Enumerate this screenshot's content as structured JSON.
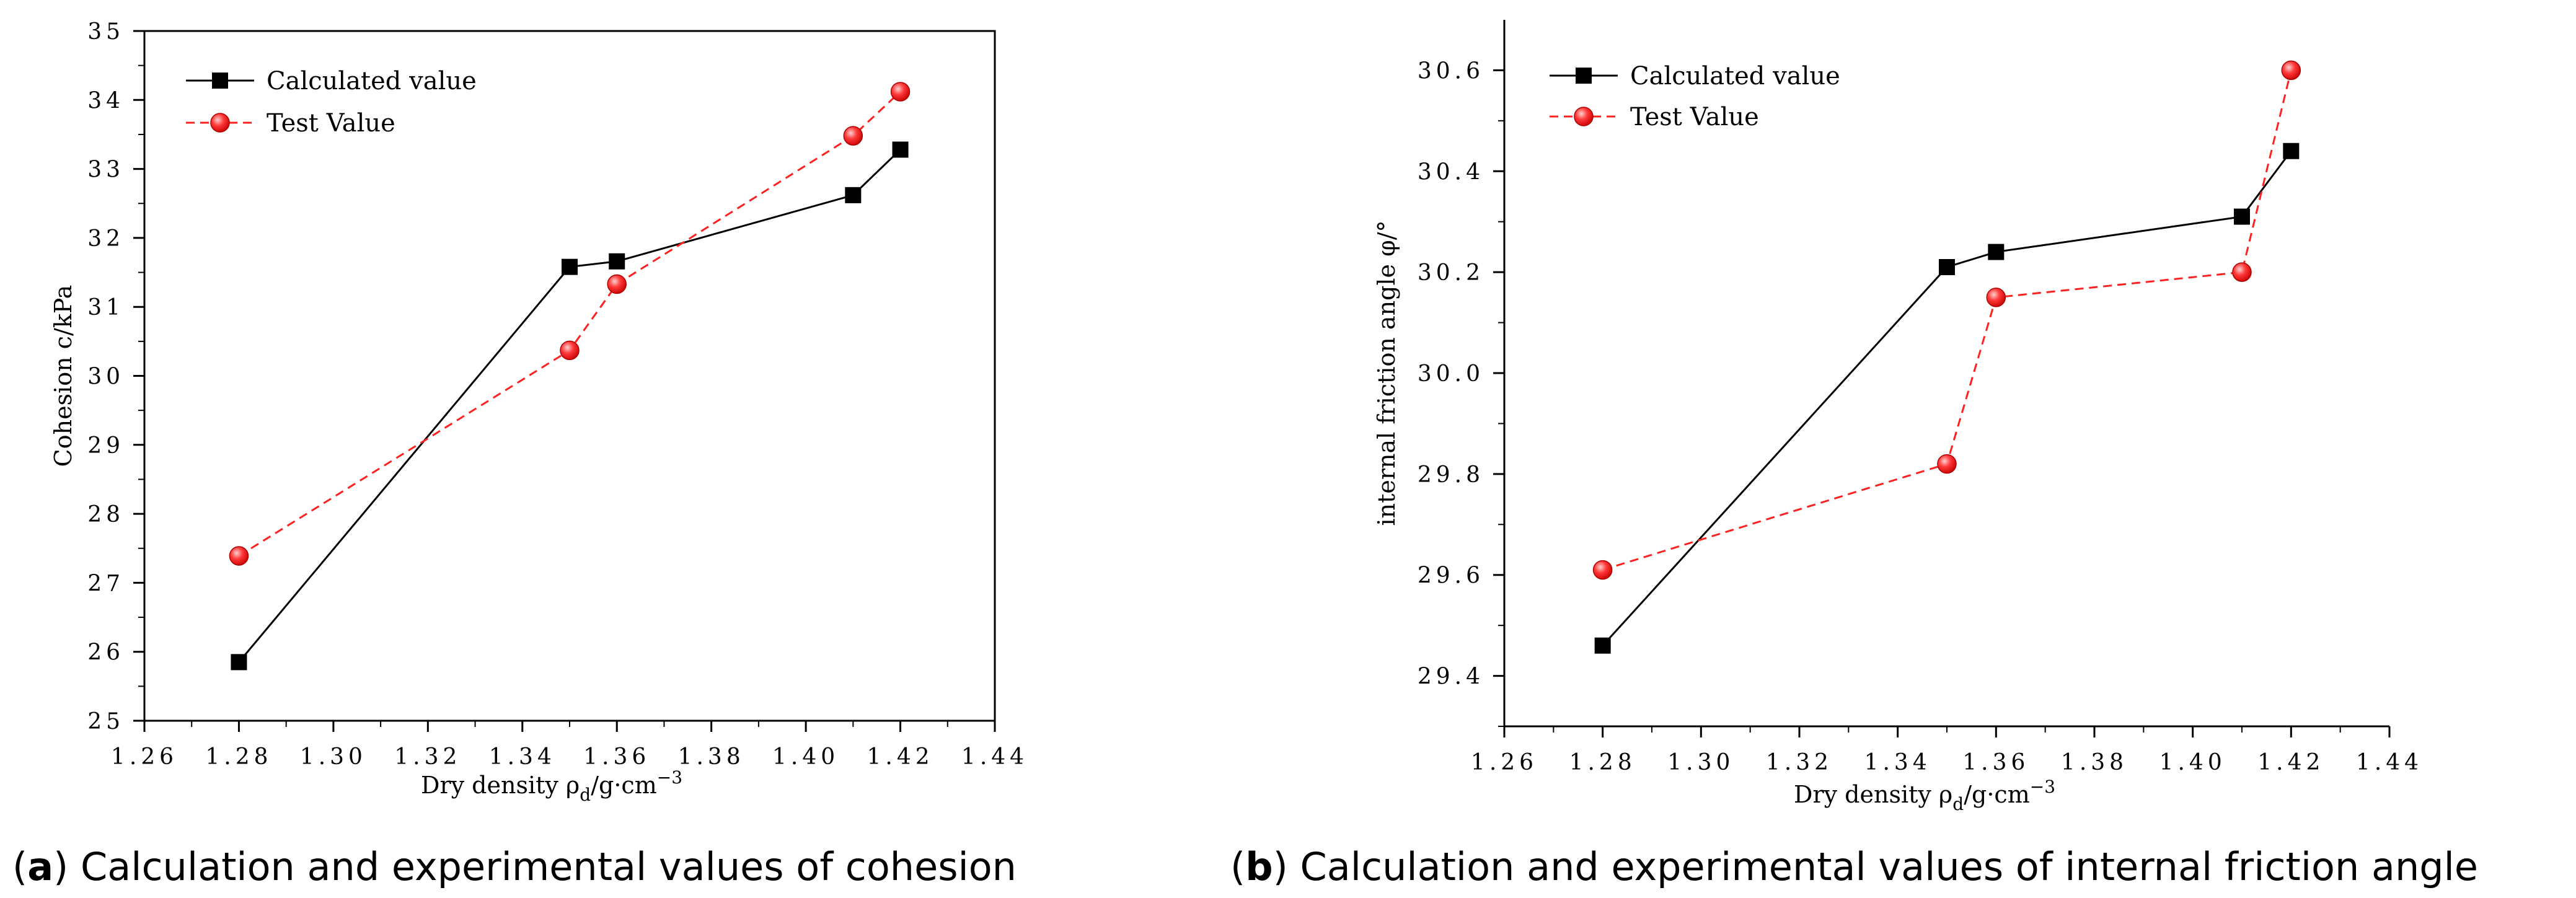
{
  "chart_data": [
    {
      "type": "line",
      "caption": {
        "open": "(",
        "letter": "a",
        "close": ")",
        "text": " Calculation and experimental values of cohesion"
      },
      "xlabel": {
        "main": "Dry density  ρ",
        "sub": "d",
        "unit": "/g·cm",
        "sup": "−3"
      },
      "ylabel": "Cohesion c/kPa",
      "xlim": [
        1.26,
        1.44
      ],
      "ylim": [
        25,
        35
      ],
      "xticks": [
        "1.26",
        "1.28",
        "1.30",
        "1.32",
        "1.34",
        "1.36",
        "1.38",
        "1.40",
        "1.42",
        "1.44"
      ],
      "yticks": [
        "25",
        "26",
        "27",
        "28",
        "29",
        "30",
        "31",
        "32",
        "33",
        "34",
        "35"
      ],
      "legend_position": "top-left",
      "series": [
        {
          "name": "Calculated value",
          "color": "#000000",
          "marker": "square",
          "line": "solid",
          "x": [
            1.28,
            1.35,
            1.36,
            1.41,
            1.42
          ],
          "y": [
            25.85,
            31.58,
            31.66,
            32.62,
            33.28
          ]
        },
        {
          "name": "Test Value",
          "color": "#ff2020",
          "marker": "circle",
          "line": "dashed",
          "x": [
            1.28,
            1.35,
            1.36,
            1.41,
            1.42
          ],
          "y": [
            27.39,
            30.37,
            31.33,
            33.48,
            34.12
          ]
        }
      ]
    },
    {
      "type": "line",
      "caption": {
        "open": "(",
        "letter": "b",
        "close": ")",
        "text": " Calculation and experimental values of internal friction angle"
      },
      "xlabel": {
        "main": "Dry density  ρ",
        "sub": "d",
        "unit": "/g·cm",
        "sup": "−3"
      },
      "ylabel": "internal friction angle  φ/°",
      "xlim": [
        1.26,
        1.44
      ],
      "ylim": [
        29.3,
        30.7
      ],
      "xticks": [
        "1.26",
        "1.28",
        "1.30",
        "1.32",
        "1.34",
        "1.36",
        "1.38",
        "1.40",
        "1.42",
        "1.44"
      ],
      "yticks": [
        "29.4",
        "29.6",
        "29.8",
        "30.0",
        "30.2",
        "30.4",
        "30.6"
      ],
      "legend_position": "top-left",
      "series": [
        {
          "name": "Calculated value",
          "color": "#000000",
          "marker": "square",
          "line": "solid",
          "x": [
            1.28,
            1.35,
            1.36,
            1.41,
            1.42
          ],
          "y": [
            29.46,
            30.21,
            30.24,
            30.31,
            30.44
          ]
        },
        {
          "name": "Test Value",
          "color": "#ff2020",
          "marker": "circle",
          "line": "dashed",
          "x": [
            1.28,
            1.35,
            1.36,
            1.41,
            1.42
          ],
          "y": [
            29.61,
            29.82,
            30.15,
            30.2,
            30.6
          ]
        }
      ]
    }
  ]
}
